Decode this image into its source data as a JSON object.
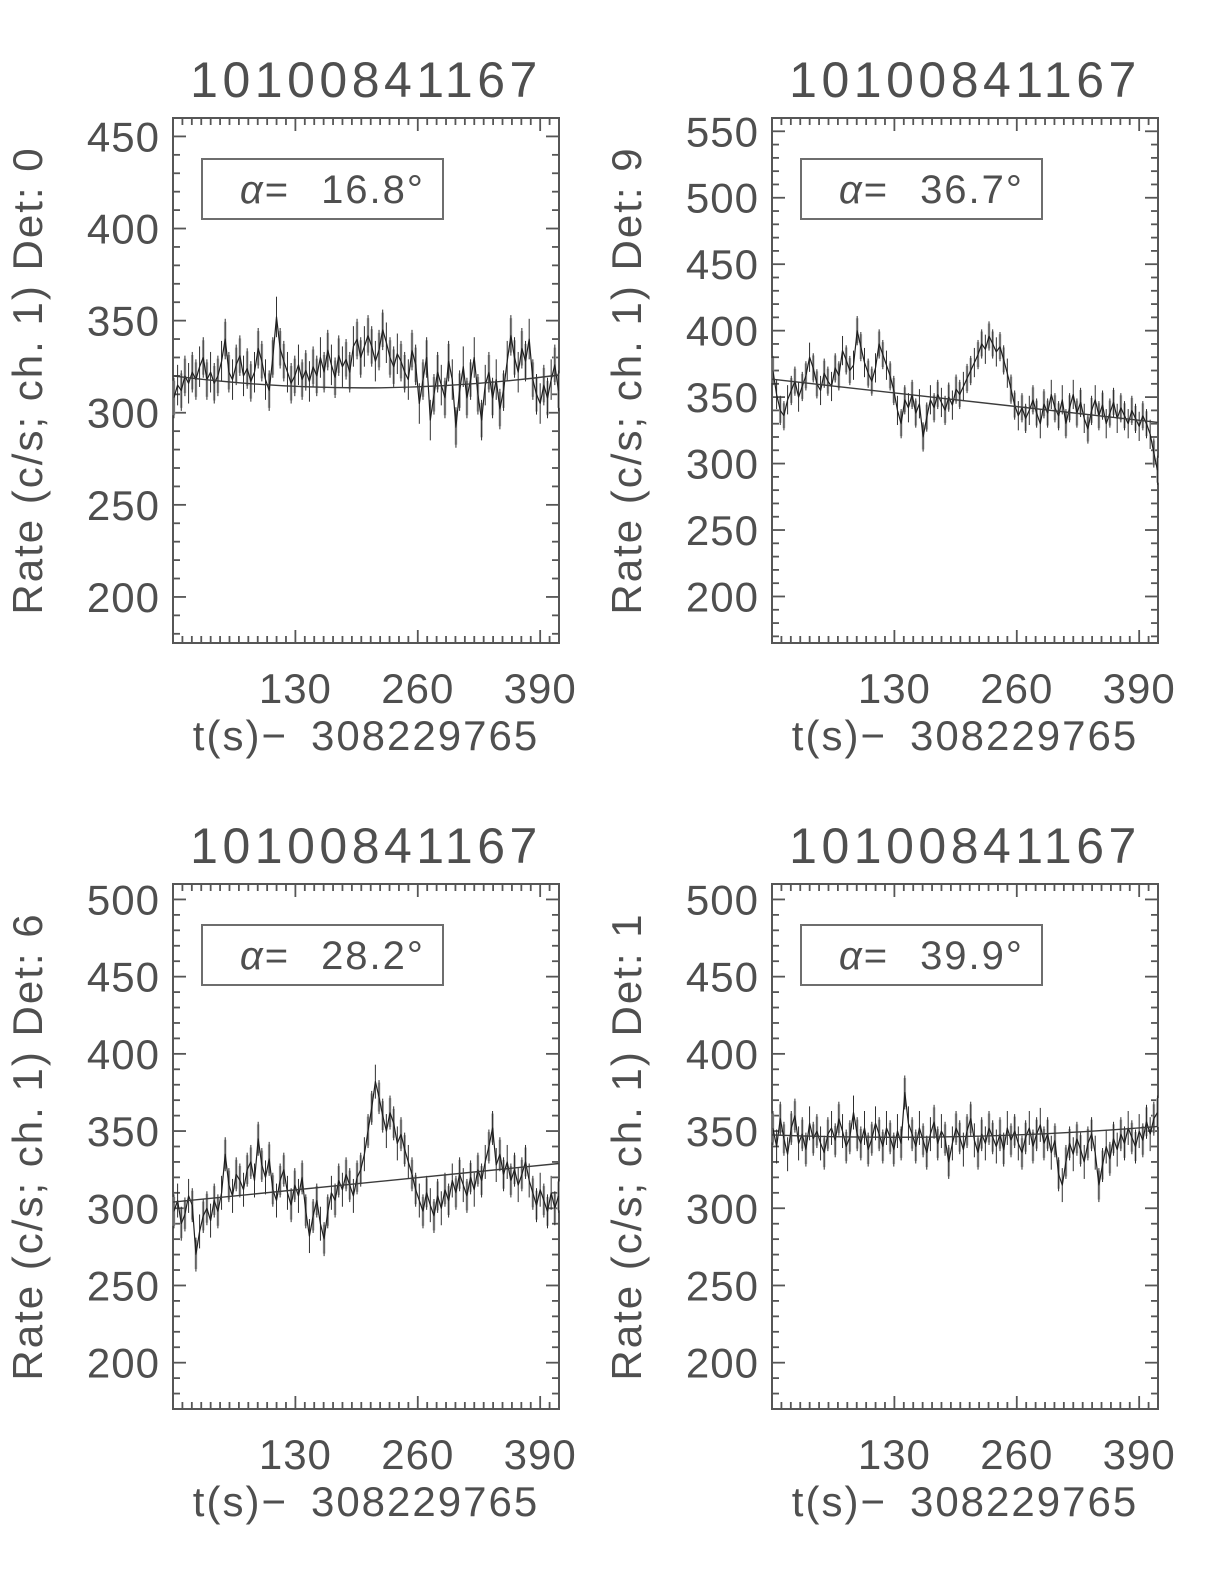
{
  "page": {
    "background": "#ffffff"
  },
  "colors": {
    "frame": "#565656",
    "text": "#4f4f4f",
    "data_line": "#1e1e1e",
    "error_bar_gray": "#b2b2b2",
    "error_bar_dark": "#2e2e2e",
    "trend_line": "#3c3c3c",
    "annotation_border": "#6e6e6e"
  },
  "chart_data": [
    {
      "type": "line",
      "title": "10100841167",
      "ylabel": "Rate (c/s; ch. 1) Det: 0",
      "xlabel": "t(s)− 308229765",
      "alpha_prefix": "α=",
      "alpha_value": "16.8°",
      "xlim": [
        0,
        410
      ],
      "ylim": [
        175,
        460
      ],
      "xticks": [
        130,
        260,
        390
      ],
      "yticks": [
        200,
        250,
        300,
        350,
        400,
        450
      ],
      "x_minor_step": 10,
      "y_minor_step": 10,
      "x_start": 1,
      "x_step": 3.89,
      "yerr": 11,
      "trend": [
        320,
        313.5,
        320.5
      ],
      "values": [
        308,
        315,
        312,
        320,
        316,
        322,
        318,
        325,
        330,
        318,
        322,
        316,
        320,
        328,
        340,
        322,
        318,
        326,
        331,
        320,
        324,
        317,
        322,
        335,
        328,
        318,
        312,
        330,
        352,
        335,
        328,
        322,
        316,
        320,
        326,
        318,
        323,
        317,
        325,
        320,
        330,
        322,
        334,
        326,
        319,
        331,
        325,
        329,
        322,
        336,
        340,
        330,
        336,
        342,
        336,
        328,
        334,
        345,
        338,
        330,
        325,
        332,
        328,
        322,
        318,
        334,
        326,
        305,
        318,
        330,
        296,
        310,
        322,
        315,
        308,
        328,
        318,
        292,
        312,
        325,
        308,
        318,
        330,
        310,
        296,
        315,
        322,
        308,
        318,
        302,
        312,
        328,
        342,
        330,
        322,
        335,
        328,
        340,
        318,
        310,
        305,
        315,
        308,
        318,
        326,
        312
      ]
    },
    {
      "type": "line",
      "title": "10100841167",
      "ylabel": "Rate (c/s; ch. 1) Det: 9",
      "xlabel": "t(s)− 308229765",
      "alpha_prefix": "α=",
      "alpha_value": "36.7°",
      "xlim": [
        0,
        410
      ],
      "ylim": [
        165,
        560
      ],
      "xticks": [
        130,
        260,
        390
      ],
      "yticks": [
        200,
        250,
        300,
        350,
        400,
        450,
        500,
        550
      ],
      "x_minor_step": 10,
      "y_minor_step": 10,
      "x_start": 1,
      "x_step": 3.89,
      "yerr": 11,
      "trend": [
        363.5,
        347.2,
        331
      ],
      "values": [
        370,
        352,
        340,
        336,
        348,
        355,
        362,
        350,
        358,
        366,
        380,
        372,
        360,
        355,
        368,
        362,
        358,
        372,
        366,
        385,
        378,
        370,
        374,
        400,
        388,
        376,
        368,
        362,
        372,
        390,
        382,
        374,
        366,
        355,
        340,
        330,
        348,
        342,
        352,
        338,
        345,
        320,
        335,
        348,
        342,
        352,
        346,
        340,
        350,
        344,
        356,
        352,
        358,
        364,
        370,
        376,
        382,
        390,
        386,
        396,
        390,
        384,
        388,
        378,
        368,
        356,
        344,
        336,
        342,
        334,
        340,
        348,
        338,
        330,
        345,
        338,
        352,
        342,
        336,
        348,
        330,
        342,
        352,
        338,
        346,
        334,
        326,
        340,
        348,
        336,
        344,
        330,
        338,
        346,
        334,
        342,
        336,
        330,
        340,
        334,
        328,
        336,
        330,
        322,
        308,
        295
      ]
    },
    {
      "type": "line",
      "title": "10100841167",
      "ylabel": "Rate (c/s; ch. 1) Det: 6",
      "xlabel": "t(s)− 308229765",
      "alpha_prefix": "α=",
      "alpha_value": "28.2°",
      "xlim": [
        0,
        410
      ],
      "ylim": [
        170,
        510
      ],
      "xticks": [
        130,
        260,
        390
      ],
      "yticks": [
        200,
        250,
        300,
        350,
        400,
        450,
        500
      ],
      "x_minor_step": 10,
      "y_minor_step": 10,
      "x_start": 1,
      "x_step": 3.89,
      "yerr": 11,
      "trend": [
        304,
        316.5,
        329
      ],
      "values": [
        298,
        305,
        290,
        296,
        308,
        302,
        270,
        285,
        295,
        300,
        292,
        305,
        298,
        310,
        335,
        315,
        308,
        322,
        318,
        312,
        325,
        330,
        318,
        345,
        328,
        320,
        332,
        312,
        305,
        318,
        325,
        310,
        302,
        315,
        308,
        320,
        298,
        282,
        295,
        305,
        290,
        280,
        298,
        310,
        305,
        318,
        312,
        322,
        315,
        308,
        320,
        325,
        335,
        350,
        365,
        382,
        372,
        360,
        350,
        362,
        355,
        342,
        348,
        338,
        330,
        322,
        312,
        305,
        298,
        310,
        302,
        295,
        308,
        300,
        312,
        305,
        318,
        310,
        322,
        315,
        308,
        320,
        312,
        325,
        318,
        330,
        340,
        352,
        328,
        335,
        322,
        330,
        318,
        325,
        315,
        322,
        330,
        318,
        310,
        302,
        312,
        305,
        298,
        310,
        300,
        308
      ]
    },
    {
      "type": "line",
      "title": "10100841167",
      "ylabel": "Rate (c/s; ch. 1) Det: 1",
      "xlabel": "t(s)− 308229765",
      "alpha_prefix": "α=",
      "alpha_value": "39.9°",
      "xlim": [
        0,
        410
      ],
      "ylim": [
        170,
        510
      ],
      "xticks": [
        130,
        260,
        390
      ],
      "yticks": [
        200,
        250,
        300,
        350,
        400,
        450,
        500
      ],
      "x_minor_step": 10,
      "y_minor_step": 10,
      "x_start": 1,
      "x_step": 3.89,
      "yerr": 11,
      "trend": [
        347.5,
        346.5,
        353
      ],
      "values": [
        352,
        340,
        358,
        345,
        335,
        352,
        360,
        342,
        348,
        338,
        355,
        345,
        350,
        342,
        336,
        348,
        352,
        344,
        358,
        350,
        340,
        346,
        362,
        348,
        342,
        352,
        338,
        345,
        355,
        348,
        340,
        352,
        346,
        338,
        350,
        342,
        375,
        355,
        348,
        340,
        352,
        344,
        336,
        348,
        356,
        342,
        350,
        345,
        330,
        342,
        352,
        346,
        338,
        350,
        358,
        344,
        336,
        348,
        342,
        352,
        346,
        340,
        348,
        338,
        352,
        344,
        350,
        342,
        336,
        346,
        352,
        340,
        348,
        354,
        342,
        348,
        336,
        344,
        322,
        315,
        330,
        342,
        335,
        345,
        338,
        330,
        342,
        348,
        336,
        315,
        328,
        340,
        332,
        345,
        338,
        348,
        342,
        352,
        346,
        340,
        350,
        344,
        356,
        348,
        358,
        362
      ]
    }
  ]
}
